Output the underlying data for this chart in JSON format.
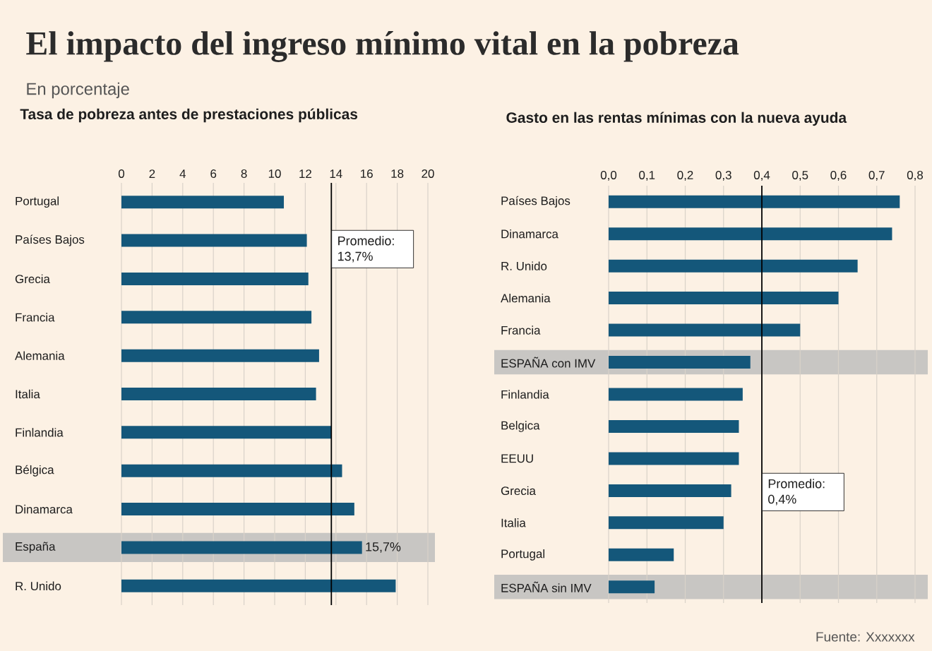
{
  "chart_data": [
    {
      "type": "other",
      "title": "El impacto del ingreso mínimo vital en la pobreza",
      "subtitle": "En porcentaje",
      "annotations": [
        "Fuente: Xxxxxxx"
      ]
    },
    {
      "type": "bar",
      "orientation": "horizontal",
      "title": "Tasa de pobreza antes de prestaciones públicas",
      "categories": [
        "Portugal",
        "Países Bajos",
        "Grecia",
        "Francia",
        "Alemania",
        "Italia",
        "Finlandia",
        "Bélgica",
        "Dinamarca",
        "España",
        "R. Unido"
      ],
      "values": [
        10.6,
        12.1,
        12.2,
        12.4,
        12.9,
        12.7,
        13.7,
        14.4,
        15.2,
        15.7,
        17.9
      ],
      "value_labels": [
        null,
        null,
        null,
        null,
        null,
        null,
        null,
        null,
        null,
        "15,7%",
        null
      ],
      "color": "#14577a",
      "xlim": [
        0,
        20
      ],
      "xticks": [
        0,
        2,
        4,
        6,
        8,
        10,
        12,
        14,
        16,
        18,
        20
      ],
      "grid": "x",
      "ref_lines": [
        {
          "axis": "x",
          "value": 13.7,
          "label": "Promedio: 13,7%",
          "color": "#000000"
        }
      ],
      "bands": [
        {
          "axis": "y",
          "from": "España",
          "to": "España",
          "color": "#c8c6c3"
        }
      ]
    },
    {
      "type": "bar",
      "orientation": "horizontal",
      "title": "Gasto en las rentas mínimas con la nueva ayuda",
      "categories": [
        "Países Bajos",
        "Dinamarca",
        "R. Unido",
        "Alemania",
        "Francia",
        "ESPAÑA con IMV",
        "Finlandia",
        "Belgica",
        "EEUU",
        "Grecia",
        "Italia",
        "Portugal",
        "ESPAÑA sin IMV"
      ],
      "values": [
        0.76,
        0.74,
        0.65,
        0.6,
        0.5,
        0.37,
        0.35,
        0.34,
        0.34,
        0.32,
        0.3,
        0.17,
        0.12
      ],
      "color": "#14577a",
      "xlim": [
        0,
        0.8
      ],
      "xticks": [
        {
          "value": 0,
          "label": "0,0"
        },
        {
          "value": 0.1,
          "label": "0,1"
        },
        {
          "value": 0.2,
          "label": "0,2"
        },
        {
          "value": 0.3,
          "label": "0,3"
        },
        {
          "value": 0.4,
          "label": "0,4"
        },
        {
          "value": 0.5,
          "label": "0,5"
        },
        {
          "value": 0.6,
          "label": "0,6"
        },
        {
          "value": 0.7,
          "label": "0,7"
        },
        {
          "value": 0.8,
          "label": "0,8"
        }
      ],
      "grid": "x",
      "ref_lines": [
        {
          "axis": "x",
          "value": 0.4,
          "label": "Promedio: 0,4%",
          "color": "#000000"
        }
      ],
      "bands": [
        {
          "axis": "y",
          "from": "ESPAÑA con IMV",
          "to": "ESPAÑA con IMV",
          "color": "#c8c6c3"
        },
        {
          "axis": "y",
          "from": "ESPAÑA sin IMV",
          "to": "ESPAÑA sin IMV",
          "color": "#c8c6c3"
        }
      ]
    }
  ]
}
